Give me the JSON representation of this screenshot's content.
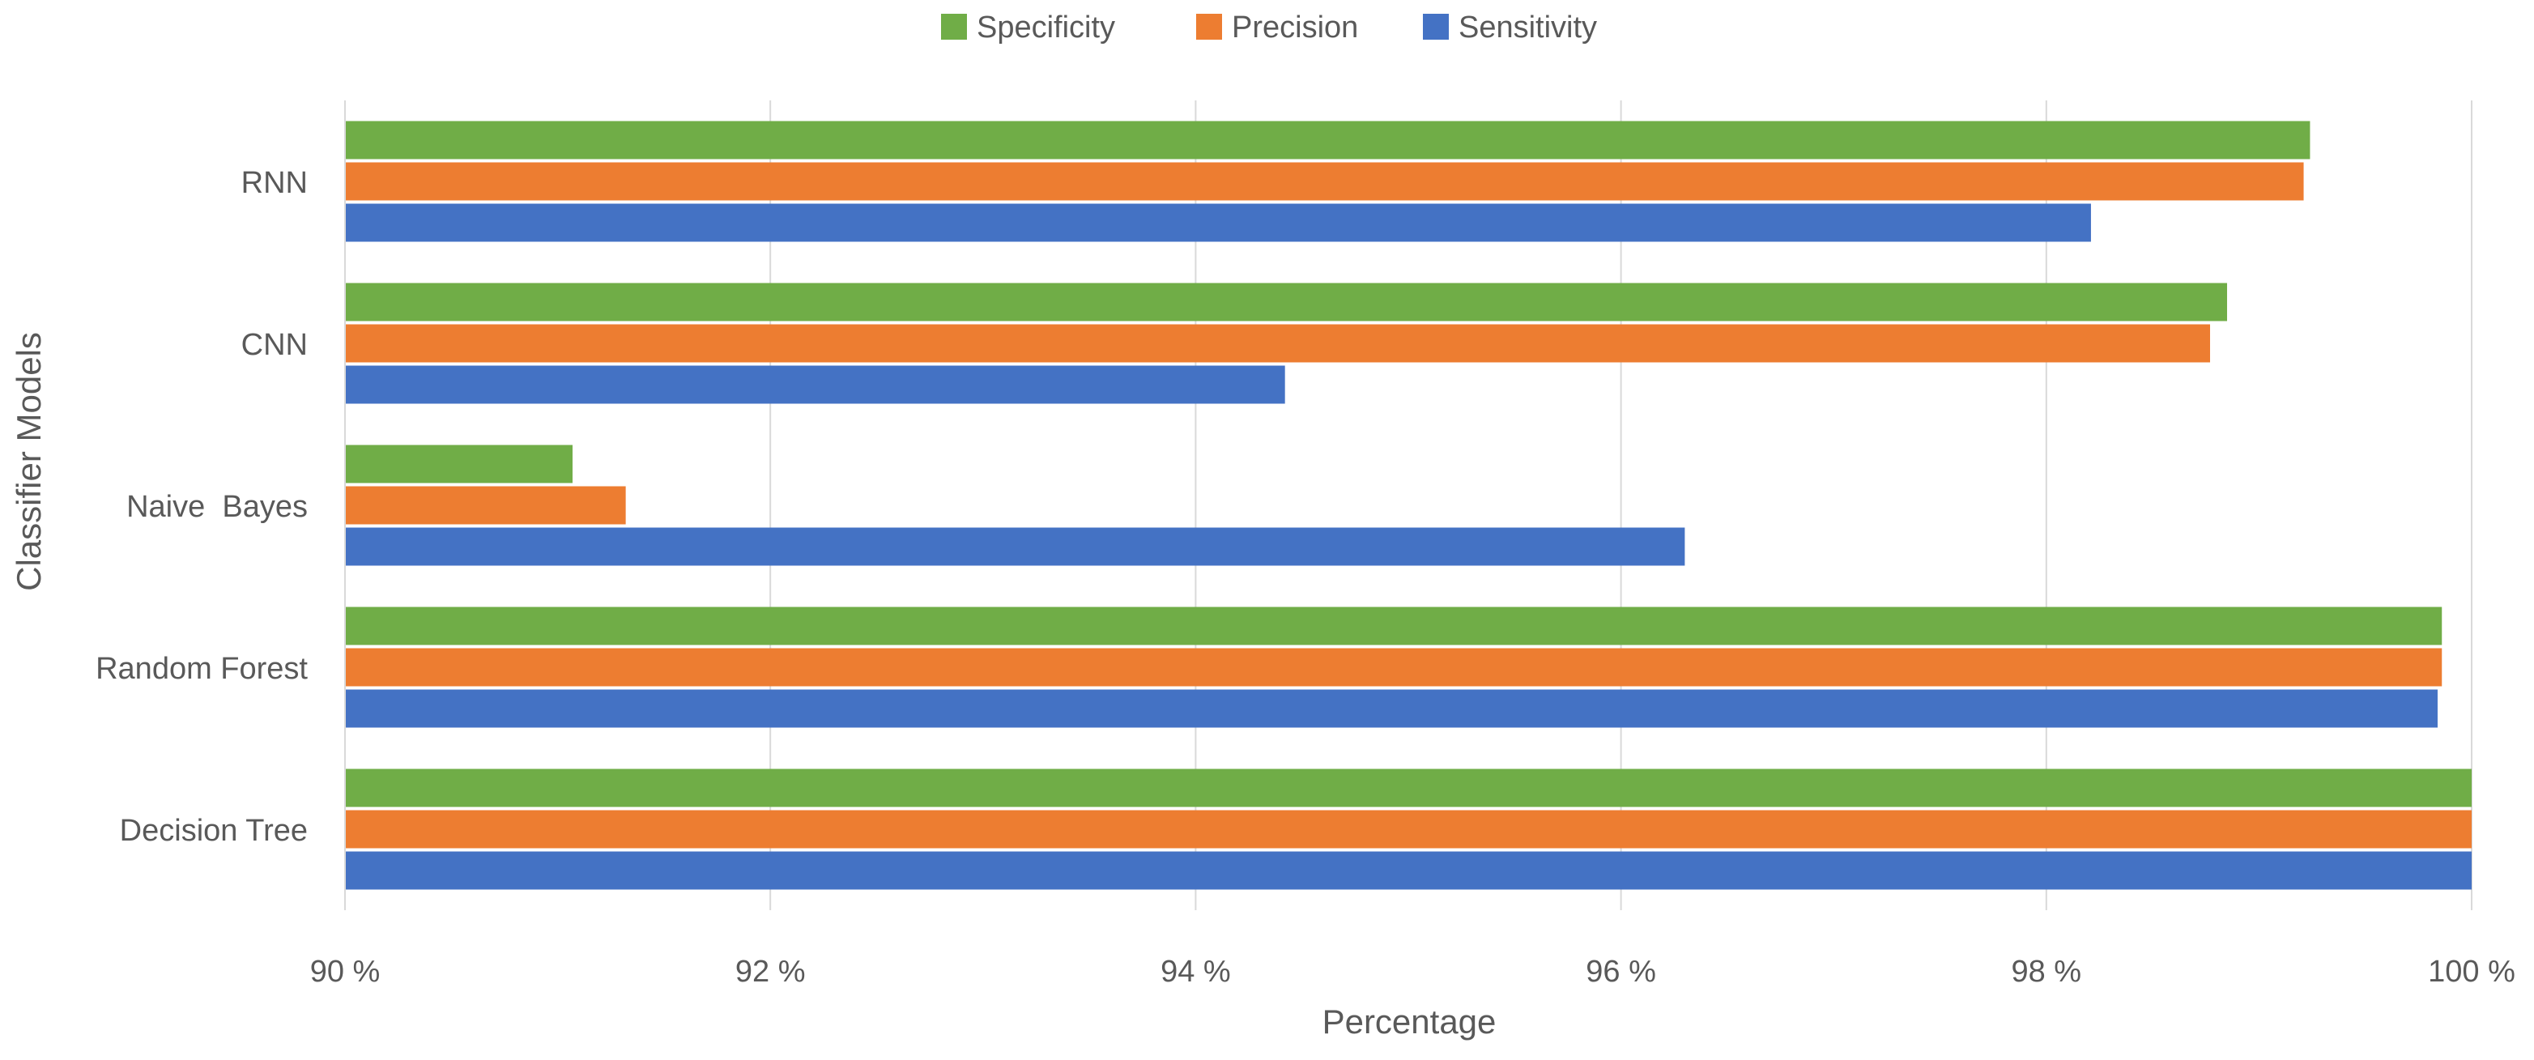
{
  "chart_data": {
    "type": "bar",
    "orientation": "horizontal",
    "categories": [
      "RNN",
      "CNN",
      "Naive  Bayes",
      "Random Forest",
      "Decision Tree"
    ],
    "series": [
      {
        "name": "Specificity",
        "color": "#70ad47",
        "values": [
          99.24,
          98.85,
          91.07,
          99.86,
          100.0
        ]
      },
      {
        "name": "Precision",
        "color": "#ed7d31",
        "values": [
          99.21,
          98.77,
          91.32,
          99.86,
          100.0
        ]
      },
      {
        "name": "Sensitivity",
        "color": "#4472c4",
        "values": [
          98.21,
          94.42,
          96.3,
          99.84,
          100.0
        ]
      }
    ],
    "legend_order": [
      "Specificity",
      "Precision",
      "Sensitivity"
    ],
    "legend_position": "top",
    "xlim": [
      90,
      100
    ],
    "x_ticks": [
      90,
      92,
      94,
      96,
      98,
      100
    ],
    "x_tick_labels": [
      "90 %",
      "92 %",
      "94 %",
      "96 %",
      "98 %",
      "100 %"
    ],
    "xlabel": "Percentage",
    "ylabel": "Classifier Models",
    "title": "",
    "grid": "vertical",
    "grid_color": "#d9d9d9",
    "text_color": "#595959"
  }
}
